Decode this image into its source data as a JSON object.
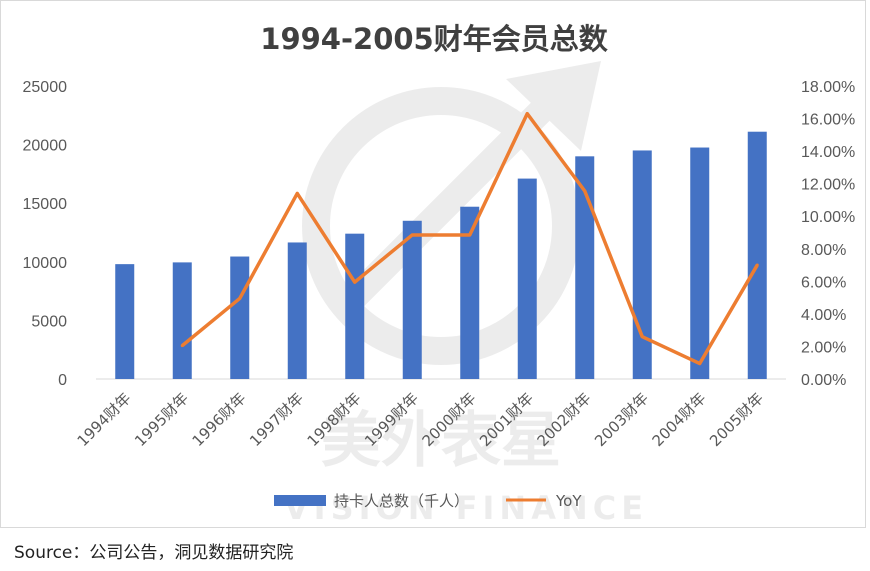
{
  "chart_data": {
    "type": "bar",
    "title": "1994-2005财年会员总数",
    "categories": [
      "1994财年",
      "1995财年",
      "1996财年",
      "1997财年",
      "1998财年",
      "1999财年",
      "2000财年",
      "2001财年",
      "2002财年",
      "2003财年",
      "2004财年",
      "2005财年"
    ],
    "series": [
      {
        "name": "持卡人总数（千人）",
        "type": "bar",
        "axis": "left",
        "color": "#4472c4",
        "values": [
          9800,
          9950,
          10450,
          11650,
          12400,
          13500,
          14700,
          17100,
          19000,
          19500,
          19750,
          21100
        ]
      },
      {
        "name": "YoY",
        "type": "line",
        "axis": "right",
        "color": "#ed7d31",
        "values": [
          null,
          0.0205,
          0.0495,
          0.114,
          0.0595,
          0.0885,
          0.0885,
          0.163,
          0.1155,
          0.026,
          0.0095,
          0.07
        ]
      }
    ],
    "left_axis": {
      "min": 0,
      "max": 25000,
      "ticks": [
        "0",
        "5000",
        "10000",
        "15000",
        "20000",
        "25000"
      ]
    },
    "right_axis": {
      "min": 0,
      "max": 0.18,
      "ticks": [
        "0.00%",
        "2.00%",
        "4.00%",
        "6.00%",
        "8.00%",
        "10.00%",
        "12.00%",
        "14.00%",
        "16.00%",
        "18.00%"
      ]
    },
    "legend_position": "bottom",
    "grid": false
  },
  "watermark": {
    "cn": "美外表星",
    "en": "VISION FINANCE"
  },
  "source": "Source：公司公告，洞见数据研究院"
}
